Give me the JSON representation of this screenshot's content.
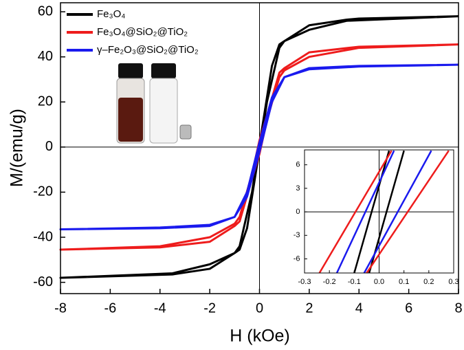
{
  "chart_data": [
    {
      "type": "line",
      "x_label": "H (kOe)",
      "y_label": "M/(emu/g)",
      "xlim": [
        -8,
        8
      ],
      "ylim": [
        -65,
        64
      ],
      "xticks": [
        -8,
        -6,
        -4,
        -2,
        0,
        2,
        4,
        6,
        8
      ],
      "yticks": [
        -60,
        -40,
        -20,
        0,
        20,
        40,
        60
      ],
      "legend": "upper left",
      "series": [
        {
          "name": "Fe₃O₄",
          "color": "#000000",
          "x": [
            8,
            4,
            3.5,
            2,
            1,
            0.8,
            0.5,
            0.1,
            0,
            -0.3,
            -0.8,
            -1,
            -2,
            -3.5,
            -8,
            -3.5,
            -2,
            -1,
            -0.8,
            -0.5,
            -0.1,
            0,
            0.3,
            0.8,
            1,
            2,
            3.5,
            8
          ],
          "values": [
            58,
            57,
            56.5,
            54,
            47,
            45.5,
            36,
            8,
            2,
            -20,
            -44,
            -47,
            -52,
            -56,
            -58,
            -56.5,
            -54,
            -47,
            -45.5,
            -36,
            -8,
            -2,
            20,
            44,
            47,
            52,
            56,
            58
          ]
        },
        {
          "name": "Fe₃O₄@SiO₂@TiO₂",
          "color": "#ee1c1c",
          "x": [
            8,
            4,
            2,
            1,
            0.8,
            0.3,
            0,
            -0.3,
            -0.8,
            -1,
            -2,
            -4,
            -8,
            -4,
            -2,
            -1,
            -0.8,
            -0.3,
            0,
            0.3,
            0.8,
            1,
            2,
            4,
            8
          ],
          "values": [
            45.5,
            44.5,
            42,
            35,
            33,
            14,
            3,
            -12,
            -31,
            -34,
            -40,
            -44,
            -45.5,
            -44.5,
            -42,
            -35,
            -33,
            -14,
            -3,
            12,
            31,
            34,
            40,
            44,
            45.5
          ]
        },
        {
          "name": "γ–Fe₂O₃@SiO₂@TiO₂",
          "color": "#1a1aee",
          "x": [
            8,
            4,
            2,
            1,
            0.5,
            0,
            -0.5,
            -1,
            -2,
            -4,
            -8,
            -4,
            -2,
            -1,
            -0.5,
            0,
            0.5,
            1,
            2,
            4,
            8
          ],
          "values": [
            36.5,
            36,
            35,
            31,
            22,
            2,
            -20,
            -31,
            -34.5,
            -35.7,
            -36.5,
            -36,
            -35,
            -31,
            -22,
            -2,
            20,
            31,
            34.5,
            35.7,
            36.5
          ]
        }
      ]
    },
    {
      "type": "line",
      "xlim": [
        -0.3,
        0.3
      ],
      "ylim": [
        -7.8,
        7.9
      ],
      "xticks": [
        -0.3,
        -0.2,
        -0.1,
        {
          "value": 0,
          "label": "0.0"
        },
        0.1,
        0.2,
        0.3
      ],
      "yticks": [
        -6,
        -3,
        0,
        3,
        6
      ],
      "series": [
        {
          "color": "#000000",
          "x": [
            -0.1,
            0.04
          ],
          "values": [
            -7.8,
            7.8
          ]
        },
        {
          "color": "#000000",
          "x": [
            -0.04,
            0.1
          ],
          "values": [
            -7.8,
            7.8
          ]
        },
        {
          "color": "#1a1aee",
          "x": [
            -0.17,
            0.06
          ],
          "values": [
            -7.8,
            7.8
          ]
        },
        {
          "color": "#1a1aee",
          "x": [
            -0.06,
            0.21
          ],
          "values": [
            -7.8,
            7.8
          ]
        },
        {
          "color": "#ee1c1c",
          "x": [
            -0.24,
            0.05
          ],
          "values": [
            -7.8,
            7.8
          ]
        },
        {
          "color": "#ee1c1c",
          "x": [
            -0.05,
            0.28
          ],
          "values": [
            -7.8,
            7.8
          ]
        }
      ]
    }
  ]
}
